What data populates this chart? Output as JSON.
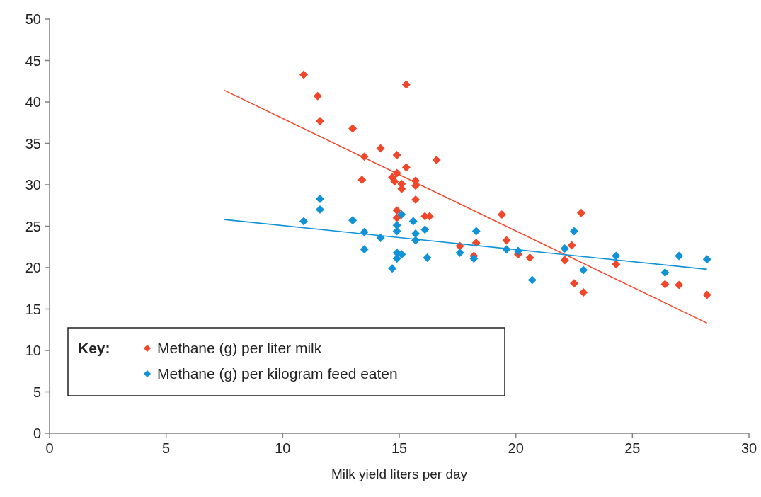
{
  "chart_data": {
    "type": "scatter",
    "xlabel": "Milk yield liters per day",
    "legend_title": "Key:",
    "legend": "bottom left",
    "marker": "diamond",
    "grid": false,
    "xlim": [
      0,
      30
    ],
    "ylim": [
      0,
      50
    ],
    "xticks": [
      0,
      5,
      10,
      15,
      20,
      25,
      30
    ],
    "yticks": [
      0,
      5,
      10,
      15,
      20,
      25,
      30,
      35,
      40,
      45,
      50
    ],
    "series": [
      {
        "name": "Methane (g) per liter milk",
        "color": "#f0462a",
        "x": [
          10.9,
          11.5,
          11.6,
          13.0,
          14.2,
          13.5,
          14.9,
          15.3,
          13.4,
          15.3,
          14.7,
          14.9,
          14.8,
          15.1,
          15.1,
          15.7,
          15.7,
          16.6,
          15.7,
          14.9,
          14.9,
          16.1,
          16.3,
          17.6,
          18.3,
          18.2,
          19.4,
          19.6,
          20.1,
          20.6,
          22.8,
          22.4,
          22.1,
          22.5,
          22.9,
          24.3,
          26.4,
          27.0,
          28.2
        ],
        "values": [
          43.3,
          40.7,
          37.7,
          36.8,
          34.4,
          33.4,
          33.6,
          42.1,
          30.6,
          32.1,
          30.9,
          31.4,
          30.4,
          30.1,
          29.5,
          30.5,
          29.9,
          33.0,
          28.2,
          26.9,
          26.0,
          26.2,
          26.2,
          22.6,
          23.0,
          21.4,
          26.4,
          23.3,
          21.6,
          21.2,
          26.6,
          22.7,
          20.9,
          18.1,
          17.0,
          20.4,
          18.0,
          17.9,
          16.7
        ]
      },
      {
        "name": "Methane (g) per kilogram feed eaten",
        "color": "#0f92d8",
        "x": [
          10.9,
          11.6,
          11.6,
          13.0,
          13.5,
          13.5,
          14.2,
          14.7,
          14.9,
          14.9,
          14.9,
          14.9,
          15.1,
          15.1,
          16.2,
          15.6,
          15.7,
          15.7,
          16.1,
          17.6,
          18.3,
          18.2,
          19.6,
          20.1,
          20.7,
          22.1,
          22.5,
          22.9,
          24.3,
          26.4,
          27.0,
          28.2
        ],
        "values": [
          25.6,
          28.3,
          27.0,
          25.7,
          24.3,
          22.2,
          23.6,
          19.9,
          24.4,
          25.1,
          21.8,
          21.1,
          21.6,
          26.4,
          21.2,
          25.6,
          24.1,
          23.3,
          24.6,
          21.8,
          24.4,
          21.1,
          22.2,
          22.0,
          18.5,
          22.3,
          24.4,
          19.7,
          21.4,
          19.4,
          21.4,
          21.0
        ]
      },
      {
        "type": "line",
        "color": "#f0462a",
        "marker": "none",
        "x": [
          7.5,
          28.2
        ],
        "values": [
          41.4,
          13.3
        ]
      },
      {
        "type": "line",
        "color": "#0f92d8",
        "marker": "none",
        "x": [
          7.5,
          28.2
        ],
        "values": [
          25.8,
          19.8
        ]
      }
    ]
  }
}
